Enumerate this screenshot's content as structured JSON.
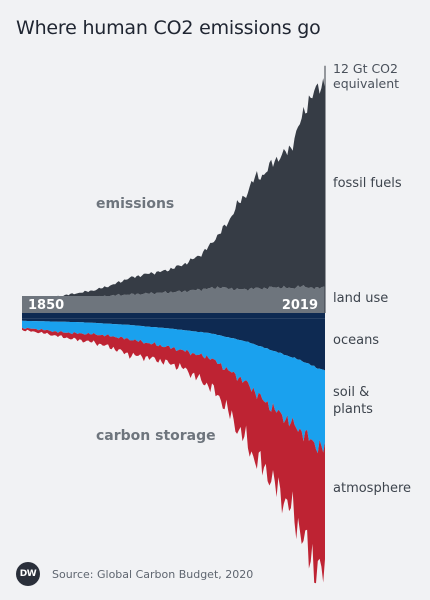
{
  "title": "Where human CO2 emissions go",
  "chart_data": {
    "type": "area",
    "x_start": 1850,
    "x_end": 2019,
    "start_label": "1850",
    "end_label": "2019",
    "unit_label": "12 Gt CO2 equivalent",
    "scale_max": 12,
    "group_labels": {
      "emissions": "emissions",
      "storage": "carbon storage"
    },
    "years": [
      1850,
      1860,
      1870,
      1880,
      1890,
      1900,
      1910,
      1920,
      1930,
      1940,
      1950,
      1955,
      1960,
      1965,
      1970,
      1975,
      1980,
      1985,
      1990,
      1995,
      2000,
      2005,
      2010,
      2015,
      2019
    ],
    "series": [
      {
        "name": "fossil fuels",
        "group": "emissions",
        "color": "#363c45",
        "values": [
          0.06,
          0.1,
          0.16,
          0.25,
          0.35,
          0.5,
          0.8,
          0.95,
          1.05,
          1.3,
          1.7,
          2.1,
          2.6,
          3.2,
          4.1,
          4.6,
          5.4,
          5.5,
          6.1,
          6.4,
          6.8,
          7.9,
          9.1,
          9.7,
          9.9
        ]
      },
      {
        "name": "land use",
        "group": "emissions",
        "color": "#6e757d",
        "values": [
          0.55,
          0.6,
          0.65,
          0.7,
          0.75,
          0.85,
          0.9,
          0.95,
          1.0,
          1.05,
          1.15,
          1.2,
          1.25,
          1.2,
          1.15,
          1.15,
          1.2,
          1.2,
          1.25,
          1.25,
          1.2,
          1.3,
          1.25,
          1.2,
          1.3
        ]
      },
      {
        "name": "oceans",
        "group": "storage",
        "color": "#0e2a52",
        "values": [
          0.1,
          0.12,
          0.14,
          0.16,
          0.2,
          0.25,
          0.3,
          0.38,
          0.45,
          0.55,
          0.65,
          0.7,
          0.8,
          0.9,
          1.0,
          1.1,
          1.25,
          1.4,
          1.55,
          1.7,
          1.85,
          2.0,
          2.2,
          2.4,
          2.5
        ]
      },
      {
        "name": "soil & plants",
        "group": "storage",
        "color": "#1aa1ee",
        "values": [
          0.35,
          0.4,
          0.5,
          0.55,
          0.55,
          0.6,
          0.7,
          0.8,
          0.9,
          1.0,
          1.15,
          1.2,
          1.4,
          1.6,
          1.8,
          2.0,
          2.3,
          2.6,
          2.8,
          3.0,
          3.2,
          3.4,
          3.6,
          3.8,
          3.8
        ]
      },
      {
        "name": "atmosphere",
        "group": "storage",
        "color": "#be2333",
        "values": [
          0.1,
          0.15,
          0.2,
          0.3,
          0.4,
          0.55,
          0.75,
          0.7,
          0.75,
          0.85,
          1.2,
          1.4,
          1.6,
          2.0,
          2.5,
          2.8,
          3.3,
          3.2,
          3.6,
          3.9,
          4.2,
          4.8,
          5.6,
          6.0,
          6.1
        ]
      }
    ]
  },
  "footer": {
    "logo_text": "DW",
    "source": "Source: Global Carbon Budget, 2020"
  }
}
